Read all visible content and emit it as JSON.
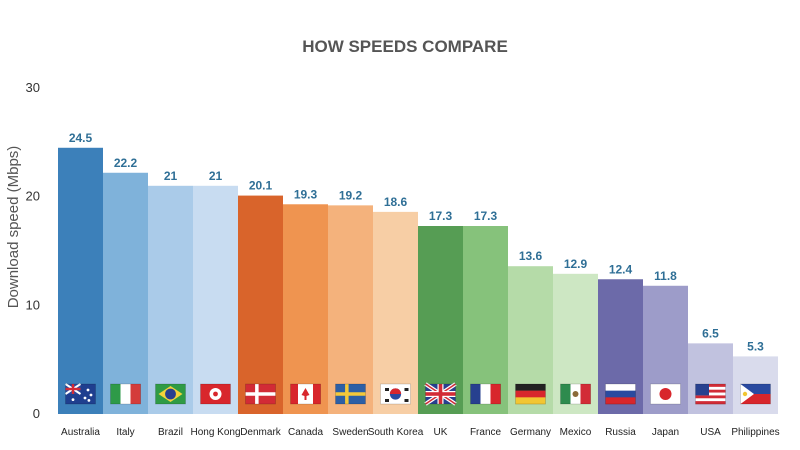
{
  "chart_data": {
    "type": "bar",
    "title": "HOW SPEEDS COMPARE",
    "xlabel": "",
    "ylabel": "Download speed (Mbps)",
    "ylim": [
      0,
      30
    ],
    "yticks": [
      0,
      10,
      20,
      30
    ],
    "grid": false,
    "legend": "none",
    "categories": [
      "Australia",
      "Italy",
      "Brazil",
      "Hong Kong",
      "Denmark",
      "Canada",
      "Sweden",
      "South Korea",
      "UK",
      "France",
      "Germany",
      "Mexico",
      "Russia",
      "Japan",
      "USA",
      "Philippines"
    ],
    "values": [
      24.5,
      22.2,
      21,
      21,
      20.1,
      19.3,
      19.2,
      18.6,
      17.3,
      17.3,
      13.6,
      12.9,
      12.4,
      11.8,
      6.5,
      5.3
    ],
    "value_labels": [
      "24.5",
      "22.2",
      "21",
      "21",
      "20.1",
      "19.3",
      "19.2",
      "18.6",
      "17.3",
      "17.3",
      "13.6",
      "12.9",
      "12.4",
      "11.8",
      "6.5",
      "5.3"
    ],
    "bar_colors": [
      "#3c80ba",
      "#7fb2da",
      "#aacbe9",
      "#c8dcf1",
      "#d9642b",
      "#ef9450",
      "#f4b27c",
      "#f7cea5",
      "#569d54",
      "#86c27b",
      "#b5dba8",
      "#cde7c3",
      "#6c6aa9",
      "#9d9cc9",
      "#c1c2df",
      "#d9dbec"
    ],
    "flags": [
      "australia-flag",
      "italy-flag",
      "brazil-flag",
      "hong-kong-flag",
      "denmark-flag",
      "canada-flag",
      "sweden-flag",
      "south-korea-flag",
      "uk-flag",
      "france-flag",
      "germany-flag",
      "mexico-flag",
      "russia-flag",
      "japan-flag",
      "usa-flag",
      "philippines-flag"
    ]
  }
}
